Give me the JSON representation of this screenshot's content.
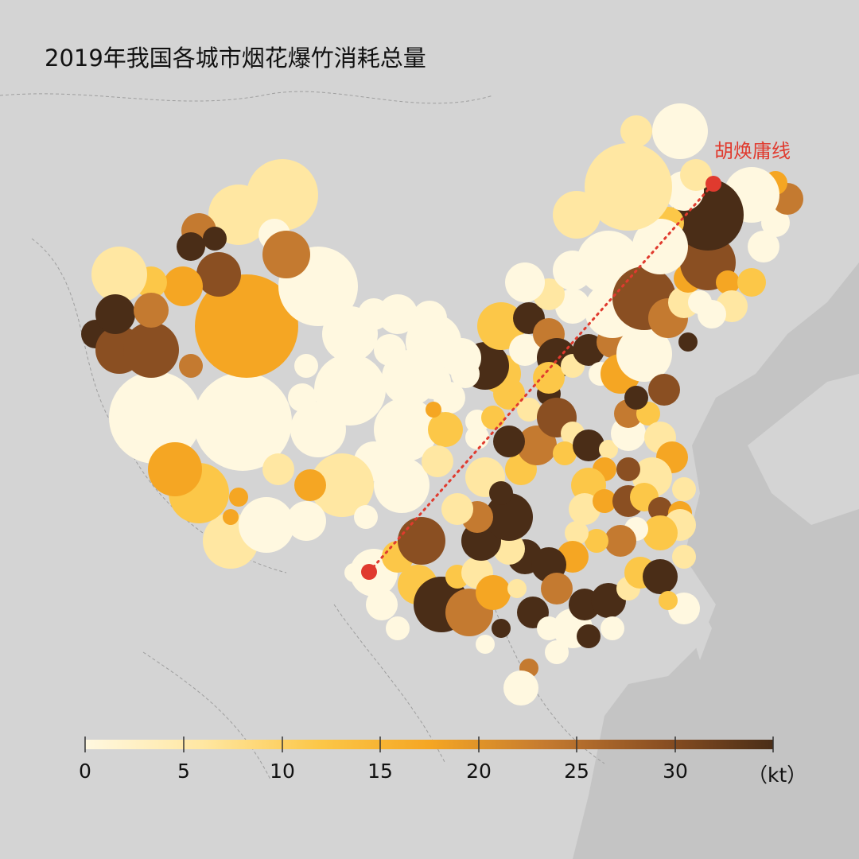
{
  "title": "2019年我国各城市烟花爆竹消耗总量",
  "hu_line_label": "胡焕庸线",
  "legend": {
    "ticks": [
      "0",
      "5",
      "10",
      "15",
      "20",
      "25",
      "30"
    ],
    "unit": "（kt）",
    "min": 0,
    "max": 35,
    "colors": [
      "#fff8e0",
      "#ffe7a2",
      "#fcc748",
      "#f5a623",
      "#c47a30",
      "#8a4f22",
      "#4a2d17"
    ]
  },
  "colors": {
    "background": "#c8c8c8",
    "land": "#d6d6d6",
    "hu_line": "#e03a2e",
    "title": "#111111"
  }
}
